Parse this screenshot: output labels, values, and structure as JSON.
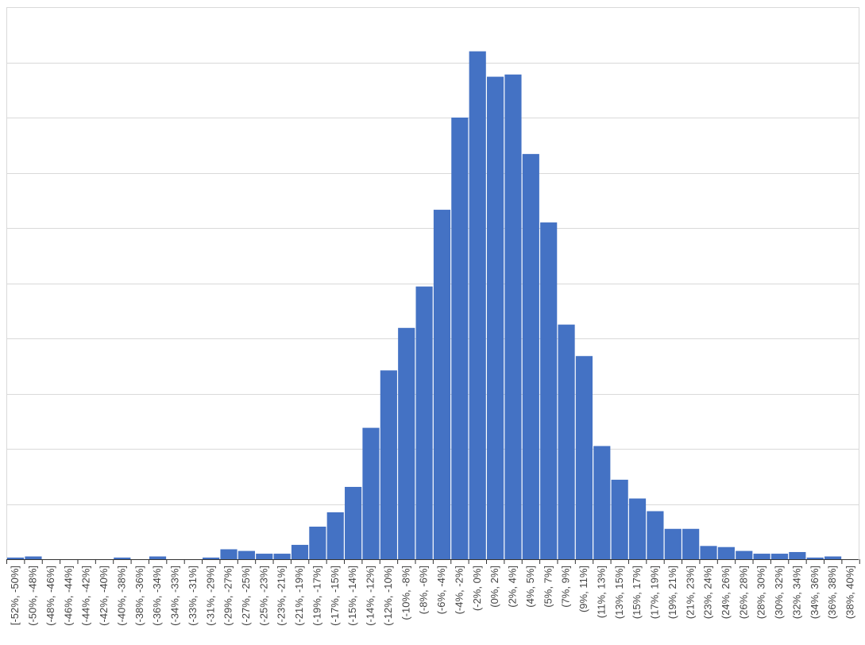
{
  "chart_data": {
    "type": "bar",
    "title": "",
    "xlabel": "",
    "ylabel": "",
    "ylim": [
      0,
      10
    ],
    "grid": true,
    "legend": "none",
    "bar_color": "#4472C4",
    "categories": [
      "[-52%, -50%]",
      "(-50%, -48%]",
      "(-48%, -46%]",
      "(-46%, -44%]",
      "(-44%, -42%]",
      "(-42%, -40%]",
      "(-40%, -38%]",
      "(-38%, -36%]",
      "(-36%, -34%]",
      "(-34%, -33%]",
      "(-33%, -31%]",
      "(-31%, -29%]",
      "(-29%, -27%]",
      "(-27%, -25%]",
      "(-25%, -23%]",
      "(-23%, -21%]",
      "(-21%, -19%]",
      "(-19%, -17%]",
      "(-17%, -15%]",
      "(-15%, -14%]",
      "(-14%, -12%]",
      "(-12%, -10%]",
      "(-10%, -8%]",
      "(-8%, -6%]",
      "(-6%, -4%]",
      "(-4%, -2%]",
      "(-2%, 0%]",
      "(0%, 2%]",
      "(2%, 4%]",
      "(4%, 5%]",
      "(5%, 7%]",
      "(7%, 9%]",
      "(9%, 11%]",
      "(11%, 13%]",
      "(13%, 15%]",
      "(15%, 17%]",
      "(17%, 19%]",
      "(19%, 21%]",
      "(21%, 23%]",
      "(23%, 24%]",
      "(24%, 26%]",
      "(26%, 28%]",
      "(28%, 30%]",
      "(30%, 32%]",
      "(32%, 34%]",
      "(34%, 36%]",
      "(36%, 38%]",
      "(38%, 40%]"
    ],
    "values": [
      0.03,
      0.05,
      0,
      0,
      0,
      0,
      0.03,
      0,
      0.05,
      0,
      0,
      0.03,
      0.18,
      0.15,
      0.1,
      0.1,
      0.26,
      0.59,
      0.85,
      1.31,
      2.38,
      3.42,
      4.19,
      4.94,
      6.33,
      8.0,
      9.2,
      8.74,
      8.78,
      7.34,
      6.1,
      4.25,
      3.68,
      2.05,
      1.44,
      1.1,
      0.87,
      0.55,
      0.55,
      0.24,
      0.22,
      0.15,
      0.1,
      0.1,
      0.13,
      0.03,
      0.05,
      0
    ]
  }
}
